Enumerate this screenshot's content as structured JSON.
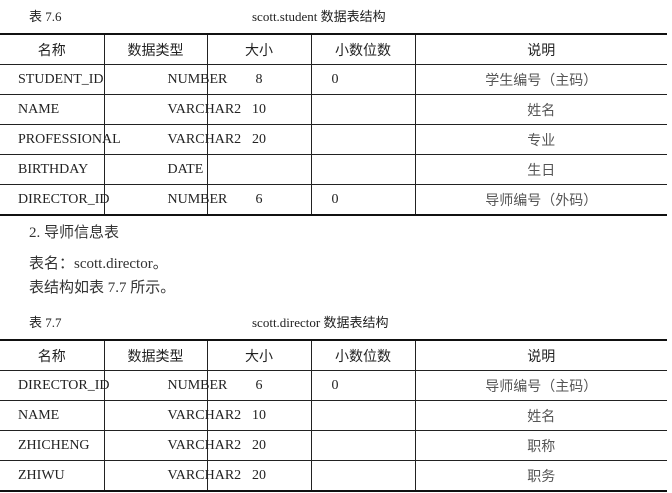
{
  "table1": {
    "number": "表 7.6",
    "title": "scott.student 数据表结构",
    "headers": [
      "名称",
      "数据类型",
      "大小",
      "小数位数",
      "说明"
    ],
    "rows": [
      [
        "STUDENT_ID",
        "NUMBER",
        "8",
        "0",
        "学生编号（主码）"
      ],
      [
        "NAME",
        "VARCHAR2",
        "10",
        "",
        "姓名"
      ],
      [
        "PROFESSIONAL",
        "VARCHAR2",
        "20",
        "",
        "专业"
      ],
      [
        "BIRTHDAY",
        "DATE",
        "",
        "",
        "生日"
      ],
      [
        "DIRECTOR_ID",
        "NUMBER",
        "6",
        "0",
        "导师编号（外码）"
      ]
    ]
  },
  "section": {
    "heading": "2. 导师信息表",
    "line1": "表名：scott.director。",
    "line2": "表结构如表 7.7 所示。"
  },
  "table2": {
    "number": "表 7.7",
    "title": "scott.director 数据表结构",
    "headers": [
      "名称",
      "数据类型",
      "大小",
      "小数位数",
      "说明"
    ],
    "rows": [
      [
        "DIRECTOR_ID",
        "NUMBER",
        "6",
        "0",
        "导师编号（主码）"
      ],
      [
        "NAME",
        "VARCHAR2",
        "10",
        "",
        "姓名"
      ],
      [
        "ZHICHENG",
        "VARCHAR2",
        "20",
        "",
        "职称"
      ],
      [
        "ZHIWU",
        "VARCHAR2",
        "20",
        "",
        "职务"
      ]
    ]
  }
}
